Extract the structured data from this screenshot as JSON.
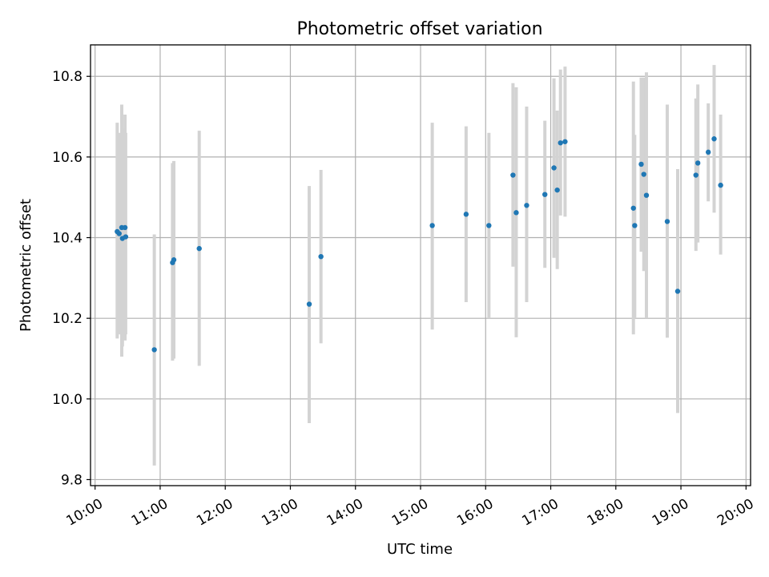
{
  "chart_data": {
    "type": "scatter",
    "title": "Photometric offset variation",
    "xlabel": "UTC time",
    "ylabel": "Photometric offset",
    "x_unit": "hours (UTC)",
    "xlim": [
      9.93,
      20.07
    ],
    "ylim": [
      9.785,
      10.878
    ],
    "grid": true,
    "x_ticks": [
      {
        "value": 10,
        "label": "10:00"
      },
      {
        "value": 11,
        "label": "11:00"
      },
      {
        "value": 12,
        "label": "12:00"
      },
      {
        "value": 13,
        "label": "13:00"
      },
      {
        "value": 14,
        "label": "14:00"
      },
      {
        "value": 15,
        "label": "15:00"
      },
      {
        "value": 16,
        "label": "16:00"
      },
      {
        "value": 17,
        "label": "17:00"
      },
      {
        "value": 18,
        "label": "18:00"
      },
      {
        "value": 19,
        "label": "19:00"
      },
      {
        "value": 20,
        "label": "20:00"
      }
    ],
    "y_ticks": [
      {
        "value": 9.8,
        "label": "9.8"
      },
      {
        "value": 10.0,
        "label": "10.0"
      },
      {
        "value": 10.2,
        "label": "10.2"
      },
      {
        "value": 10.4,
        "label": "10.4"
      },
      {
        "value": 10.6,
        "label": "10.6"
      },
      {
        "value": 10.8,
        "label": "10.8"
      }
    ],
    "colors": {
      "marker": "#1f77b4",
      "errorbar": "#d3d3d3",
      "grid": "#b0b0b0"
    },
    "points": [
      {
        "x": 10.34,
        "y": 10.415,
        "lo": 10.15,
        "hi": 10.685
      },
      {
        "x": 10.37,
        "y": 10.41,
        "lo": 10.16,
        "hi": 10.66
      },
      {
        "x": 10.41,
        "y": 10.425,
        "lo": 10.105,
        "hi": 10.73
      },
      {
        "x": 10.42,
        "y": 10.398,
        "lo": 10.13,
        "hi": 10.67
      },
      {
        "x": 10.46,
        "y": 10.425,
        "lo": 10.145,
        "hi": 10.705
      },
      {
        "x": 10.47,
        "y": 10.402,
        "lo": 10.16,
        "hi": 10.66
      },
      {
        "x": 10.91,
        "y": 10.122,
        "lo": 9.835,
        "hi": 10.408
      },
      {
        "x": 11.19,
        "y": 10.338,
        "lo": 10.095,
        "hi": 10.585
      },
      {
        "x": 11.21,
        "y": 10.345,
        "lo": 10.1,
        "hi": 10.59
      },
      {
        "x": 11.6,
        "y": 10.373,
        "lo": 10.082,
        "hi": 10.665
      },
      {
        "x": 13.29,
        "y": 10.235,
        "lo": 9.94,
        "hi": 10.528
      },
      {
        "x": 13.47,
        "y": 10.353,
        "lo": 10.138,
        "hi": 10.568
      },
      {
        "x": 15.18,
        "y": 10.43,
        "lo": 10.172,
        "hi": 10.685
      },
      {
        "x": 15.7,
        "y": 10.458,
        "lo": 10.24,
        "hi": 10.676
      },
      {
        "x": 16.05,
        "y": 10.43,
        "lo": 10.2,
        "hi": 10.66
      },
      {
        "x": 16.42,
        "y": 10.555,
        "lo": 10.328,
        "hi": 10.783
      },
      {
        "x": 16.47,
        "y": 10.462,
        "lo": 10.153,
        "hi": 10.773
      },
      {
        "x": 16.63,
        "y": 10.48,
        "lo": 10.24,
        "hi": 10.725
      },
      {
        "x": 16.91,
        "y": 10.507,
        "lo": 10.325,
        "hi": 10.69
      },
      {
        "x": 17.05,
        "y": 10.573,
        "lo": 10.35,
        "hi": 10.795
      },
      {
        "x": 17.1,
        "y": 10.518,
        "lo": 10.322,
        "hi": 10.715
      },
      {
        "x": 17.15,
        "y": 10.635,
        "lo": 10.455,
        "hi": 10.817
      },
      {
        "x": 17.22,
        "y": 10.638,
        "lo": 10.452,
        "hi": 10.824
      },
      {
        "x": 18.27,
        "y": 10.473,
        "lo": 10.16,
        "hi": 10.787
      },
      {
        "x": 18.29,
        "y": 10.43,
        "lo": 10.2,
        "hi": 10.655
      },
      {
        "x": 18.39,
        "y": 10.582,
        "lo": 10.365,
        "hi": 10.797
      },
      {
        "x": 18.43,
        "y": 10.557,
        "lo": 10.317,
        "hi": 10.797
      },
      {
        "x": 18.47,
        "y": 10.505,
        "lo": 10.2,
        "hi": 10.81
      },
      {
        "x": 18.79,
        "y": 10.44,
        "lo": 10.152,
        "hi": 10.73
      },
      {
        "x": 18.95,
        "y": 10.267,
        "lo": 9.965,
        "hi": 10.57
      },
      {
        "x": 19.23,
        "y": 10.555,
        "lo": 10.367,
        "hi": 10.745
      },
      {
        "x": 19.26,
        "y": 10.585,
        "lo": 10.388,
        "hi": 10.78
      },
      {
        "x": 19.42,
        "y": 10.612,
        "lo": 10.49,
        "hi": 10.733
      },
      {
        "x": 19.51,
        "y": 10.645,
        "lo": 10.462,
        "hi": 10.828
      },
      {
        "x": 19.61,
        "y": 10.53,
        "lo": 10.358,
        "hi": 10.705
      }
    ]
  }
}
